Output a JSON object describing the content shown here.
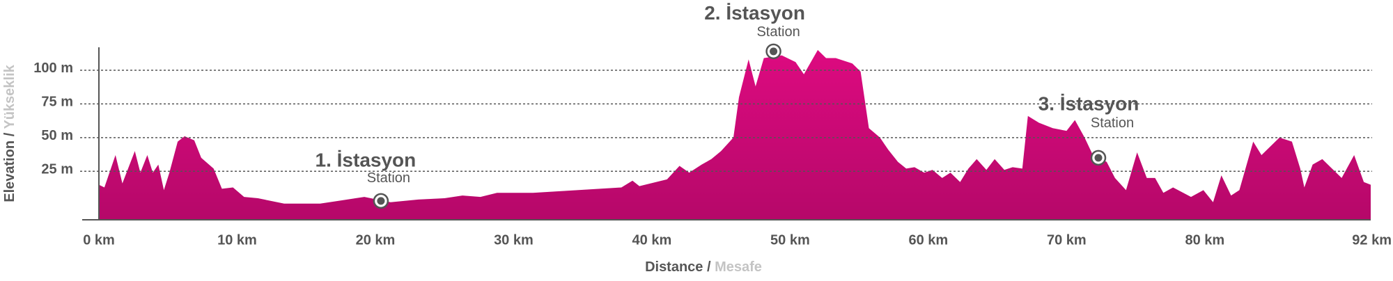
{
  "chart_data": {
    "type": "area",
    "x": [
      0.0,
      0.4,
      1.2,
      1.7,
      2.6,
      3.0,
      3.5,
      3.9,
      4.3,
      4.7,
      5.1,
      5.7,
      6.2,
      6.9,
      7.4,
      8.3,
      8.9,
      9.7,
      10.5,
      11.5,
      13.4,
      16.0,
      17.3,
      19.2,
      21.1,
      23.1,
      25.0,
      26.3,
      27.6,
      28.8,
      31.4,
      34.6,
      37.8,
      38.6,
      39.1,
      41.1,
      42.0,
      42.7,
      43.6,
      44.3,
      45.0,
      45.9,
      46.3,
      47.0,
      47.5,
      48.1,
      49.4,
      50.4,
      51.0,
      52.0,
      52.6,
      53.3,
      53.9,
      54.5,
      55.1,
      55.7,
      56.5,
      57.1,
      57.8,
      58.4,
      59.0,
      59.7,
      60.3,
      61.0,
      61.6,
      62.3,
      62.9,
      63.5,
      64.2,
      64.8,
      65.5,
      66.1,
      66.8,
      67.2,
      68.0,
      69.0,
      70.0,
      70.6,
      71.3,
      71.9,
      72.9,
      73.5,
      74.3,
      75.1,
      75.8,
      76.4,
      77.0,
      77.7,
      79.0,
      79.9,
      80.6,
      81.2,
      81.9,
      82.5,
      83.5,
      84.1,
      85.4,
      86.3,
      86.9,
      87.2,
      87.8,
      88.5,
      89.2,
      89.9,
      90.8,
      91.5,
      92.0
    ],
    "values": [
      15,
      13,
      37,
      16,
      40,
      24,
      37,
      24,
      30,
      11,
      24,
      47,
      51,
      48,
      35,
      27,
      12,
      13,
      6,
      5,
      1,
      1,
      3,
      6,
      2,
      4,
      5,
      7,
      6,
      9,
      9,
      11,
      13,
      18,
      14,
      19,
      29,
      24,
      30,
      34,
      40,
      50,
      80,
      108,
      88,
      109,
      111,
      106,
      97,
      115,
      109,
      109,
      107,
      105,
      99,
      57,
      50,
      41,
      32,
      27,
      28,
      24,
      26,
      20,
      24,
      17,
      27,
      34,
      26,
      34,
      26,
      28,
      27,
      66,
      61,
      57,
      55,
      63,
      50,
      37,
      32,
      20,
      11,
      39,
      20,
      20,
      9,
      13,
      6,
      11,
      2,
      22,
      7,
      11,
      47,
      37,
      50,
      47,
      27,
      13,
      30,
      34,
      27,
      20,
      37,
      17,
      15
    ],
    "color": "#dd0a80",
    "xlim": [
      0,
      92
    ],
    "xticks": [
      {
        "value": 0,
        "label": "0 km"
      },
      {
        "value": 10,
        "label": "10 km"
      },
      {
        "value": 20,
        "label": "20 km"
      },
      {
        "value": 30,
        "label": "30 km"
      },
      {
        "value": 40,
        "label": "40 km"
      },
      {
        "value": 50,
        "label": "50 km"
      },
      {
        "value": 60,
        "label": "60 km"
      },
      {
        "value": 70,
        "label": "70 km"
      },
      {
        "value": 80,
        "label": "80 km"
      },
      {
        "value": 92,
        "label": "92 km"
      }
    ],
    "ylim": [
      -11,
      117
    ],
    "yticks": [
      {
        "value": 25,
        "label": "25 m"
      },
      {
        "value": 50,
        "label": "50 m"
      },
      {
        "value": 75,
        "label": "75 m"
      },
      {
        "value": 100,
        "label": "100 m"
      }
    ],
    "grid": true,
    "xlabel": {
      "main": "Distance /",
      "secondary": "Mesafe"
    },
    "ylabel": {
      "main": "Elevation /",
      "secondary": "Yükseklik"
    },
    "stations": [
      {
        "name": "1. İstasyon",
        "subtitle": "Station",
        "km": 20.4,
        "elevation": 3
      },
      {
        "name": "2. İstasyon",
        "subtitle": "Station",
        "km": 48.8,
        "elevation": 114
      },
      {
        "name": "3. İstasyon",
        "subtitle": "Station",
        "km": 72.3,
        "elevation": 35
      }
    ]
  }
}
